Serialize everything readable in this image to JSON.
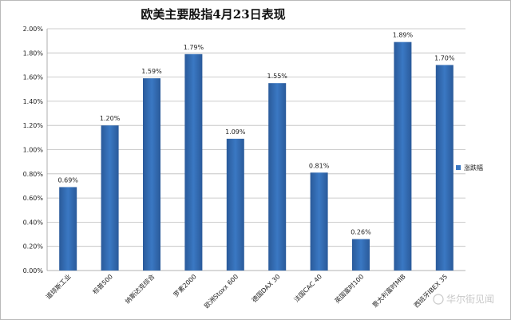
{
  "chart_data": {
    "type": "bar",
    "title": "欧美主要股指4月23日表现",
    "categories": [
      "道琼斯工业",
      "标普500",
      "纳斯达克综合",
      "罗素2000",
      "欧洲Stoxx 600",
      "德国DAX 30",
      "法国CAC 40",
      "英国富时100",
      "意大利富时MIB",
      "西班牙IBEX 35"
    ],
    "series": [
      {
        "name": "涨跌幅",
        "values": [
          0.69,
          1.2,
          1.59,
          1.79,
          1.09,
          1.55,
          0.81,
          0.26,
          1.89,
          1.7
        ],
        "data_labels": [
          "0.69%",
          "1.20%",
          "1.59%",
          "1.79%",
          "1.09%",
          "1.55%",
          "0.81%",
          "0.26%",
          "1.89%",
          "1.70%"
        ]
      }
    ],
    "y_ticks": [
      "0.00%",
      "0.20%",
      "0.40%",
      "0.60%",
      "0.80%",
      "1.00%",
      "1.20%",
      "1.40%",
      "1.60%",
      "1.80%",
      "2.00%"
    ],
    "ylim": [
      0,
      2.0
    ],
    "y_unit": "%",
    "grid": true,
    "legend_position": "right",
    "bar_color": "#3a78c3",
    "bar_color_dark": "#2a5a9a",
    "watermark": "华尔街见闻"
  }
}
